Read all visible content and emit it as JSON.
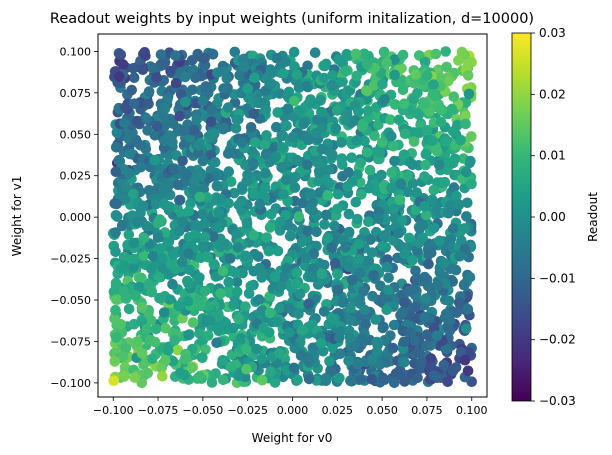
{
  "chart_data": {
    "type": "scatter",
    "title": "Readout weights by input weights (uniform initalization, d=10000)",
    "xlabel": "Weight for v0",
    "ylabel": "Weight for v1",
    "xlim": [
      -0.1085,
      0.1085
    ],
    "ylim": [
      -0.1085,
      0.1105
    ],
    "x_ticks": [
      "−0.100",
      "−0.075",
      "−0.050",
      "−0.025",
      "0.000",
      "0.025",
      "0.050",
      "0.075",
      "0.100"
    ],
    "x_tick_values": [
      -0.1,
      -0.075,
      -0.05,
      -0.025,
      0.0,
      0.025,
      0.05,
      0.075,
      0.1
    ],
    "y_ticks": [
      "−0.100",
      "−0.075",
      "−0.050",
      "−0.025",
      "0.000",
      "0.025",
      "0.050",
      "0.075",
      "0.100"
    ],
    "y_tick_values": [
      -0.1,
      -0.075,
      -0.05,
      -0.025,
      0.0,
      0.025,
      0.05,
      0.075,
      0.1
    ],
    "colorbar": {
      "label": "Readout",
      "colormap": "viridis",
      "range": [
        -0.03,
        0.03
      ],
      "ticks": [
        "0.03",
        "0.02",
        "0.01",
        "0.00",
        "−0.01",
        "−0.02",
        "−0.03"
      ],
      "tick_values": [
        0.03,
        0.02,
        0.01,
        0.0,
        -0.01,
        -0.02,
        -0.03
      ]
    },
    "point_distribution": "uniform over [-0.1, 0.1] x [-0.1, 0.1]",
    "readout_trend": "readout ≈ 0.12·w0·w1/0.01 on average: high (green/yellow) in top-right and bottom-left, low (purple) in top-left and bottom-right",
    "representative_points": [
      {
        "x": 0.085,
        "y": 0.092,
        "readout": 0.018
      },
      {
        "x": -0.09,
        "y": -0.088,
        "readout": 0.016
      },
      {
        "x": -0.088,
        "y": 0.09,
        "readout": -0.015
      },
      {
        "x": 0.092,
        "y": -0.09,
        "readout": -0.016
      },
      {
        "x": 0.0,
        "y": 0.0,
        "readout": 0.0
      }
    ],
    "grid": false
  },
  "colors": {
    "viridis_stops": [
      "#440154",
      "#482878",
      "#3e4989",
      "#31688e",
      "#26828e",
      "#1f9e89",
      "#35b779",
      "#6ece58",
      "#b5de2b",
      "#fde725"
    ]
  }
}
